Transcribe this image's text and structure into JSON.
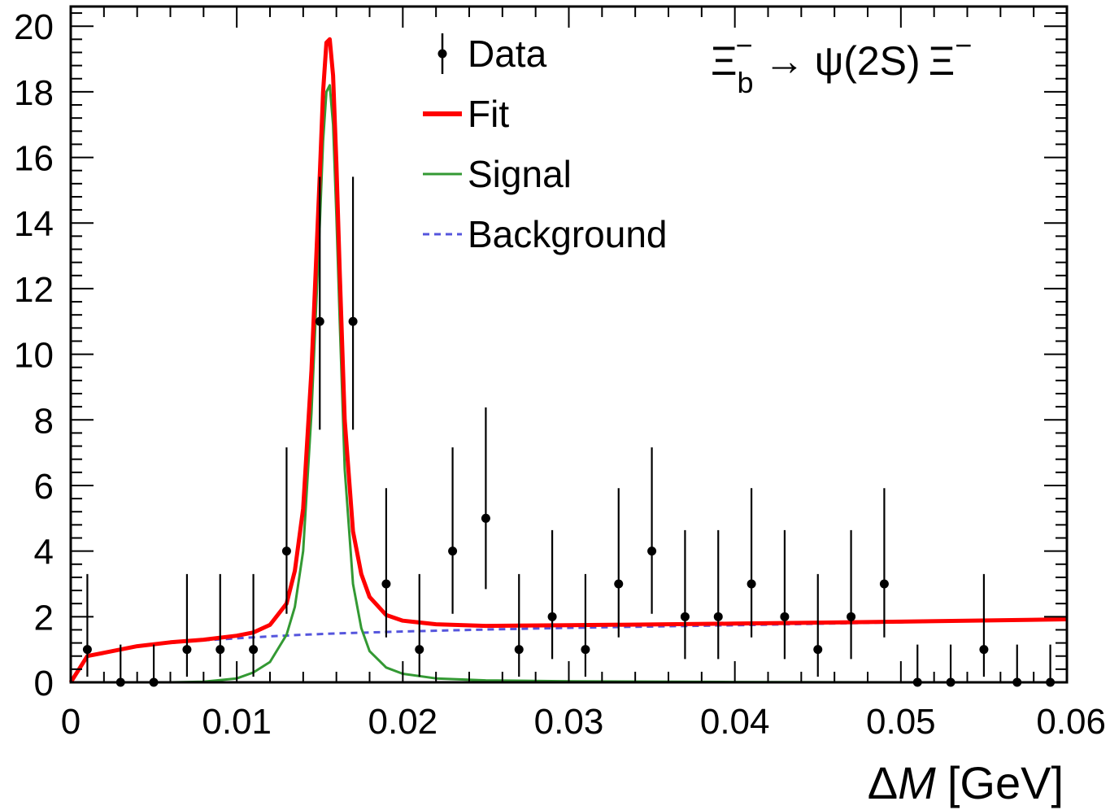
{
  "chart_data": {
    "type": "scatter",
    "title": "Ξb⁻ → ψ(2S) Ξ⁻",
    "title_parts": {
      "xi": "Ξ",
      "sub": "b",
      "sup": "−",
      "arrow": "→",
      "psi": "ψ",
      "state": "(2S)",
      "xi2": "Ξ",
      "sup2": "−"
    },
    "xlabel": "ΔM [GeV]",
    "xlabel_parts": {
      "delta": "Δ",
      "var": "M",
      "unit": "[GeV]"
    },
    "ylabel": "",
    "xlim": [
      0,
      0.06
    ],
    "ylim": [
      0,
      20.6
    ],
    "xticks": [
      {
        "value": 0,
        "label": "0"
      },
      {
        "value": 0.01,
        "label": "0.01"
      },
      {
        "value": 0.02,
        "label": "0.02"
      },
      {
        "value": 0.03,
        "label": "0.03"
      },
      {
        "value": 0.04,
        "label": "0.04"
      },
      {
        "value": 0.05,
        "label": "0.05"
      },
      {
        "value": 0.06,
        "label": "0.06"
      }
    ],
    "yticks": [
      {
        "value": 0,
        "label": "0"
      },
      {
        "value": 2,
        "label": "2"
      },
      {
        "value": 4,
        "label": "4"
      },
      {
        "value": 6,
        "label": "6"
      },
      {
        "value": 8,
        "label": "8"
      },
      {
        "value": 10,
        "label": "10"
      },
      {
        "value": 12,
        "label": "12"
      },
      {
        "value": 14,
        "label": "14"
      },
      {
        "value": 16,
        "label": "16"
      },
      {
        "value": 18,
        "label": "18"
      },
      {
        "value": 20,
        "label": "20"
      }
    ],
    "legend": {
      "position": "top-center",
      "entries": [
        {
          "key": "data",
          "label": "Data"
        },
        {
          "key": "fit",
          "label": "Fit"
        },
        {
          "key": "signal",
          "label": "Signal"
        },
        {
          "key": "background",
          "label": "Background"
        }
      ]
    },
    "series": [
      {
        "name": "Data",
        "kind": "points-with-errors",
        "color": "#000000",
        "x": [
          0.001,
          0.003,
          0.005,
          0.007,
          0.009,
          0.011,
          0.013,
          0.015,
          0.017,
          0.019,
          0.021,
          0.023,
          0.025,
          0.027,
          0.029,
          0.031,
          0.033,
          0.035,
          0.037,
          0.039,
          0.041,
          0.043,
          0.045,
          0.047,
          0.049,
          0.051,
          0.053,
          0.055,
          0.057,
          0.059
        ],
        "y": [
          1,
          0,
          0,
          1,
          1,
          1,
          4,
          11,
          11,
          3,
          1,
          4,
          5,
          1,
          2,
          1,
          3,
          4,
          2,
          2,
          3,
          2,
          1,
          2,
          3,
          0,
          0,
          1,
          0,
          0
        ],
        "err_low": [
          0.83,
          0,
          0,
          0.83,
          0.83,
          0.83,
          1.91,
          3.3,
          3.3,
          1.63,
          0.83,
          1.91,
          2.16,
          0.83,
          1.29,
          0.83,
          1.63,
          1.91,
          1.29,
          1.29,
          1.63,
          1.29,
          0.83,
          1.29,
          1.63,
          0,
          0,
          0.83,
          0,
          0
        ],
        "err_high": [
          2.3,
          1.15,
          1.15,
          2.3,
          2.3,
          2.3,
          3.16,
          4.41,
          4.41,
          2.92,
          2.3,
          3.16,
          3.38,
          2.3,
          2.64,
          2.3,
          2.92,
          3.16,
          2.64,
          2.64,
          2.92,
          2.64,
          2.3,
          2.64,
          2.92,
          1.15,
          1.15,
          2.3,
          1.15,
          1.15
        ]
      },
      {
        "name": "Fit",
        "kind": "curve",
        "color": "#ff0000",
        "x": [
          0,
          0.001,
          0.002,
          0.004,
          0.006,
          0.008,
          0.01,
          0.011,
          0.012,
          0.013,
          0.0135,
          0.014,
          0.0145,
          0.015,
          0.0152,
          0.0154,
          0.0156,
          0.0158,
          0.016,
          0.0162,
          0.0165,
          0.017,
          0.0175,
          0.018,
          0.019,
          0.02,
          0.022,
          0.025,
          0.03,
          0.04,
          0.05,
          0.06
        ],
        "y": [
          0.0,
          0.8,
          0.9,
          1.1,
          1.22,
          1.3,
          1.42,
          1.52,
          1.75,
          2.4,
          3.4,
          5.3,
          9.5,
          15.5,
          18.0,
          19.5,
          19.6,
          18.5,
          15.8,
          12.5,
          8.0,
          4.6,
          3.3,
          2.6,
          2.05,
          1.88,
          1.77,
          1.72,
          1.74,
          1.79,
          1.85,
          1.92
        ]
      },
      {
        "name": "Signal",
        "kind": "curve",
        "color": "#339933",
        "x": [
          0,
          0.006,
          0.008,
          0.01,
          0.011,
          0.012,
          0.013,
          0.0135,
          0.014,
          0.0145,
          0.015,
          0.0152,
          0.0154,
          0.0156,
          0.0158,
          0.016,
          0.0162,
          0.0165,
          0.017,
          0.0175,
          0.018,
          0.019,
          0.02,
          0.022,
          0.025,
          0.03,
          0.04,
          0.05,
          0.06
        ],
        "y": [
          0.0,
          0.0,
          0.02,
          0.12,
          0.3,
          0.62,
          1.45,
          2.3,
          4.0,
          8.2,
          14.0,
          16.5,
          18.0,
          18.2,
          17.0,
          14.2,
          11.0,
          6.5,
          3.0,
          1.65,
          0.95,
          0.45,
          0.26,
          0.12,
          0.06,
          0.03,
          0.01,
          0.0,
          0.0
        ]
      },
      {
        "name": "Background",
        "kind": "curve",
        "dashed": true,
        "color": "#5555dd",
        "x": [
          0,
          0.001,
          0.002,
          0.004,
          0.006,
          0.008,
          0.01,
          0.012,
          0.014,
          0.016,
          0.018,
          0.02,
          0.025,
          0.03,
          0.04,
          0.05,
          0.06
        ],
        "y": [
          0.0,
          0.8,
          0.9,
          1.1,
          1.2,
          1.28,
          1.34,
          1.4,
          1.45,
          1.49,
          1.52,
          1.55,
          1.61,
          1.66,
          1.74,
          1.83,
          1.92
        ]
      }
    ]
  }
}
